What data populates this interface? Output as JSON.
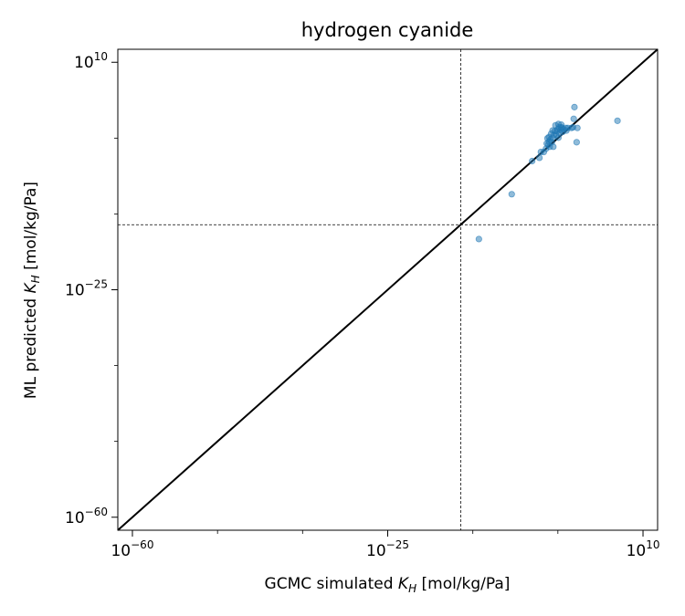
{
  "chart_data": {
    "type": "scatter",
    "title": "hydrogen cyanide",
    "xlabel": "GCMC simulated K_H [mol/kg/Pa]",
    "ylabel": "ML predicted K_H [mol/kg/Pa]",
    "x_scale": "log",
    "y_scale": "log",
    "xlim_log10": [
      -62,
      12
    ],
    "ylim_log10": [
      -62,
      12
    ],
    "x_major_ticks_log10": [
      -60,
      -25,
      10
    ],
    "y_major_ticks_log10": [
      -60,
      -25,
      10
    ],
    "minor_ticks_log10": [
      -48.33,
      -36.67,
      -13.33,
      -1.67
    ],
    "tick_label_base": "10",
    "x_tick_exponents": [
      "−60",
      "−25",
      "10"
    ],
    "y_tick_exponents": [
      "−60",
      "−25",
      "10"
    ],
    "reference_lines": {
      "parity_line": "y = x",
      "vertical_dashed_at_log10_x": -15,
      "horizontal_dashed_at_log10_y": -15
    },
    "marker_color": "#1f77b4",
    "series": [
      {
        "points_log10": [
          [
            -12.5,
            -17.2
          ],
          [
            -8.0,
            -10.3
          ],
          [
            -5.2,
            -5.2
          ],
          [
            -4.2,
            -4.7
          ],
          [
            -4.0,
            -3.8
          ],
          [
            -3.6,
            -3.8
          ],
          [
            -3.3,
            -3.3
          ],
          [
            -3.2,
            -2.5
          ],
          [
            -3.1,
            -1.7
          ],
          [
            -3.0,
            -2.7
          ],
          [
            -2.9,
            -2.2
          ],
          [
            -2.8,
            -3.0
          ],
          [
            -2.7,
            -1.9
          ],
          [
            -2.6,
            -1.0
          ],
          [
            -2.5,
            -2.3
          ],
          [
            -2.4,
            -1.6
          ],
          [
            -2.3,
            -3.0
          ],
          [
            -2.2,
            -1.2
          ],
          [
            -2.1,
            -0.6
          ],
          [
            -2.0,
            0.3
          ],
          [
            -1.9,
            -1.2
          ],
          [
            -1.8,
            -0.6
          ],
          [
            -1.7,
            -0.3
          ],
          [
            -1.6,
            -1.6
          ],
          [
            -1.5,
            0.0
          ],
          [
            -1.4,
            -0.9
          ],
          [
            -1.3,
            -0.4
          ],
          [
            -1.2,
            0.0
          ],
          [
            -1.1,
            -0.1
          ],
          [
            -1.0,
            -0.7
          ],
          [
            -0.9,
            -0.3
          ],
          [
            -0.6,
            -0.1
          ],
          [
            -0.3,
            -0.1
          ],
          [
            0.2,
            -0.1
          ],
          [
            0.4,
            0.0
          ],
          [
            0.5,
            1.3
          ],
          [
            0.6,
            3.1
          ],
          [
            0.9,
            -2.3
          ],
          [
            1.0,
            -0.1
          ],
          [
            6.5,
            1.0
          ],
          [
            -2.4,
            -0.5
          ],
          [
            -1.6,
            0.5
          ],
          [
            -0.5,
            -0.5
          ],
          [
            -2.9,
            -1.5
          ],
          [
            -1.2,
            0.4
          ]
        ]
      }
    ]
  }
}
